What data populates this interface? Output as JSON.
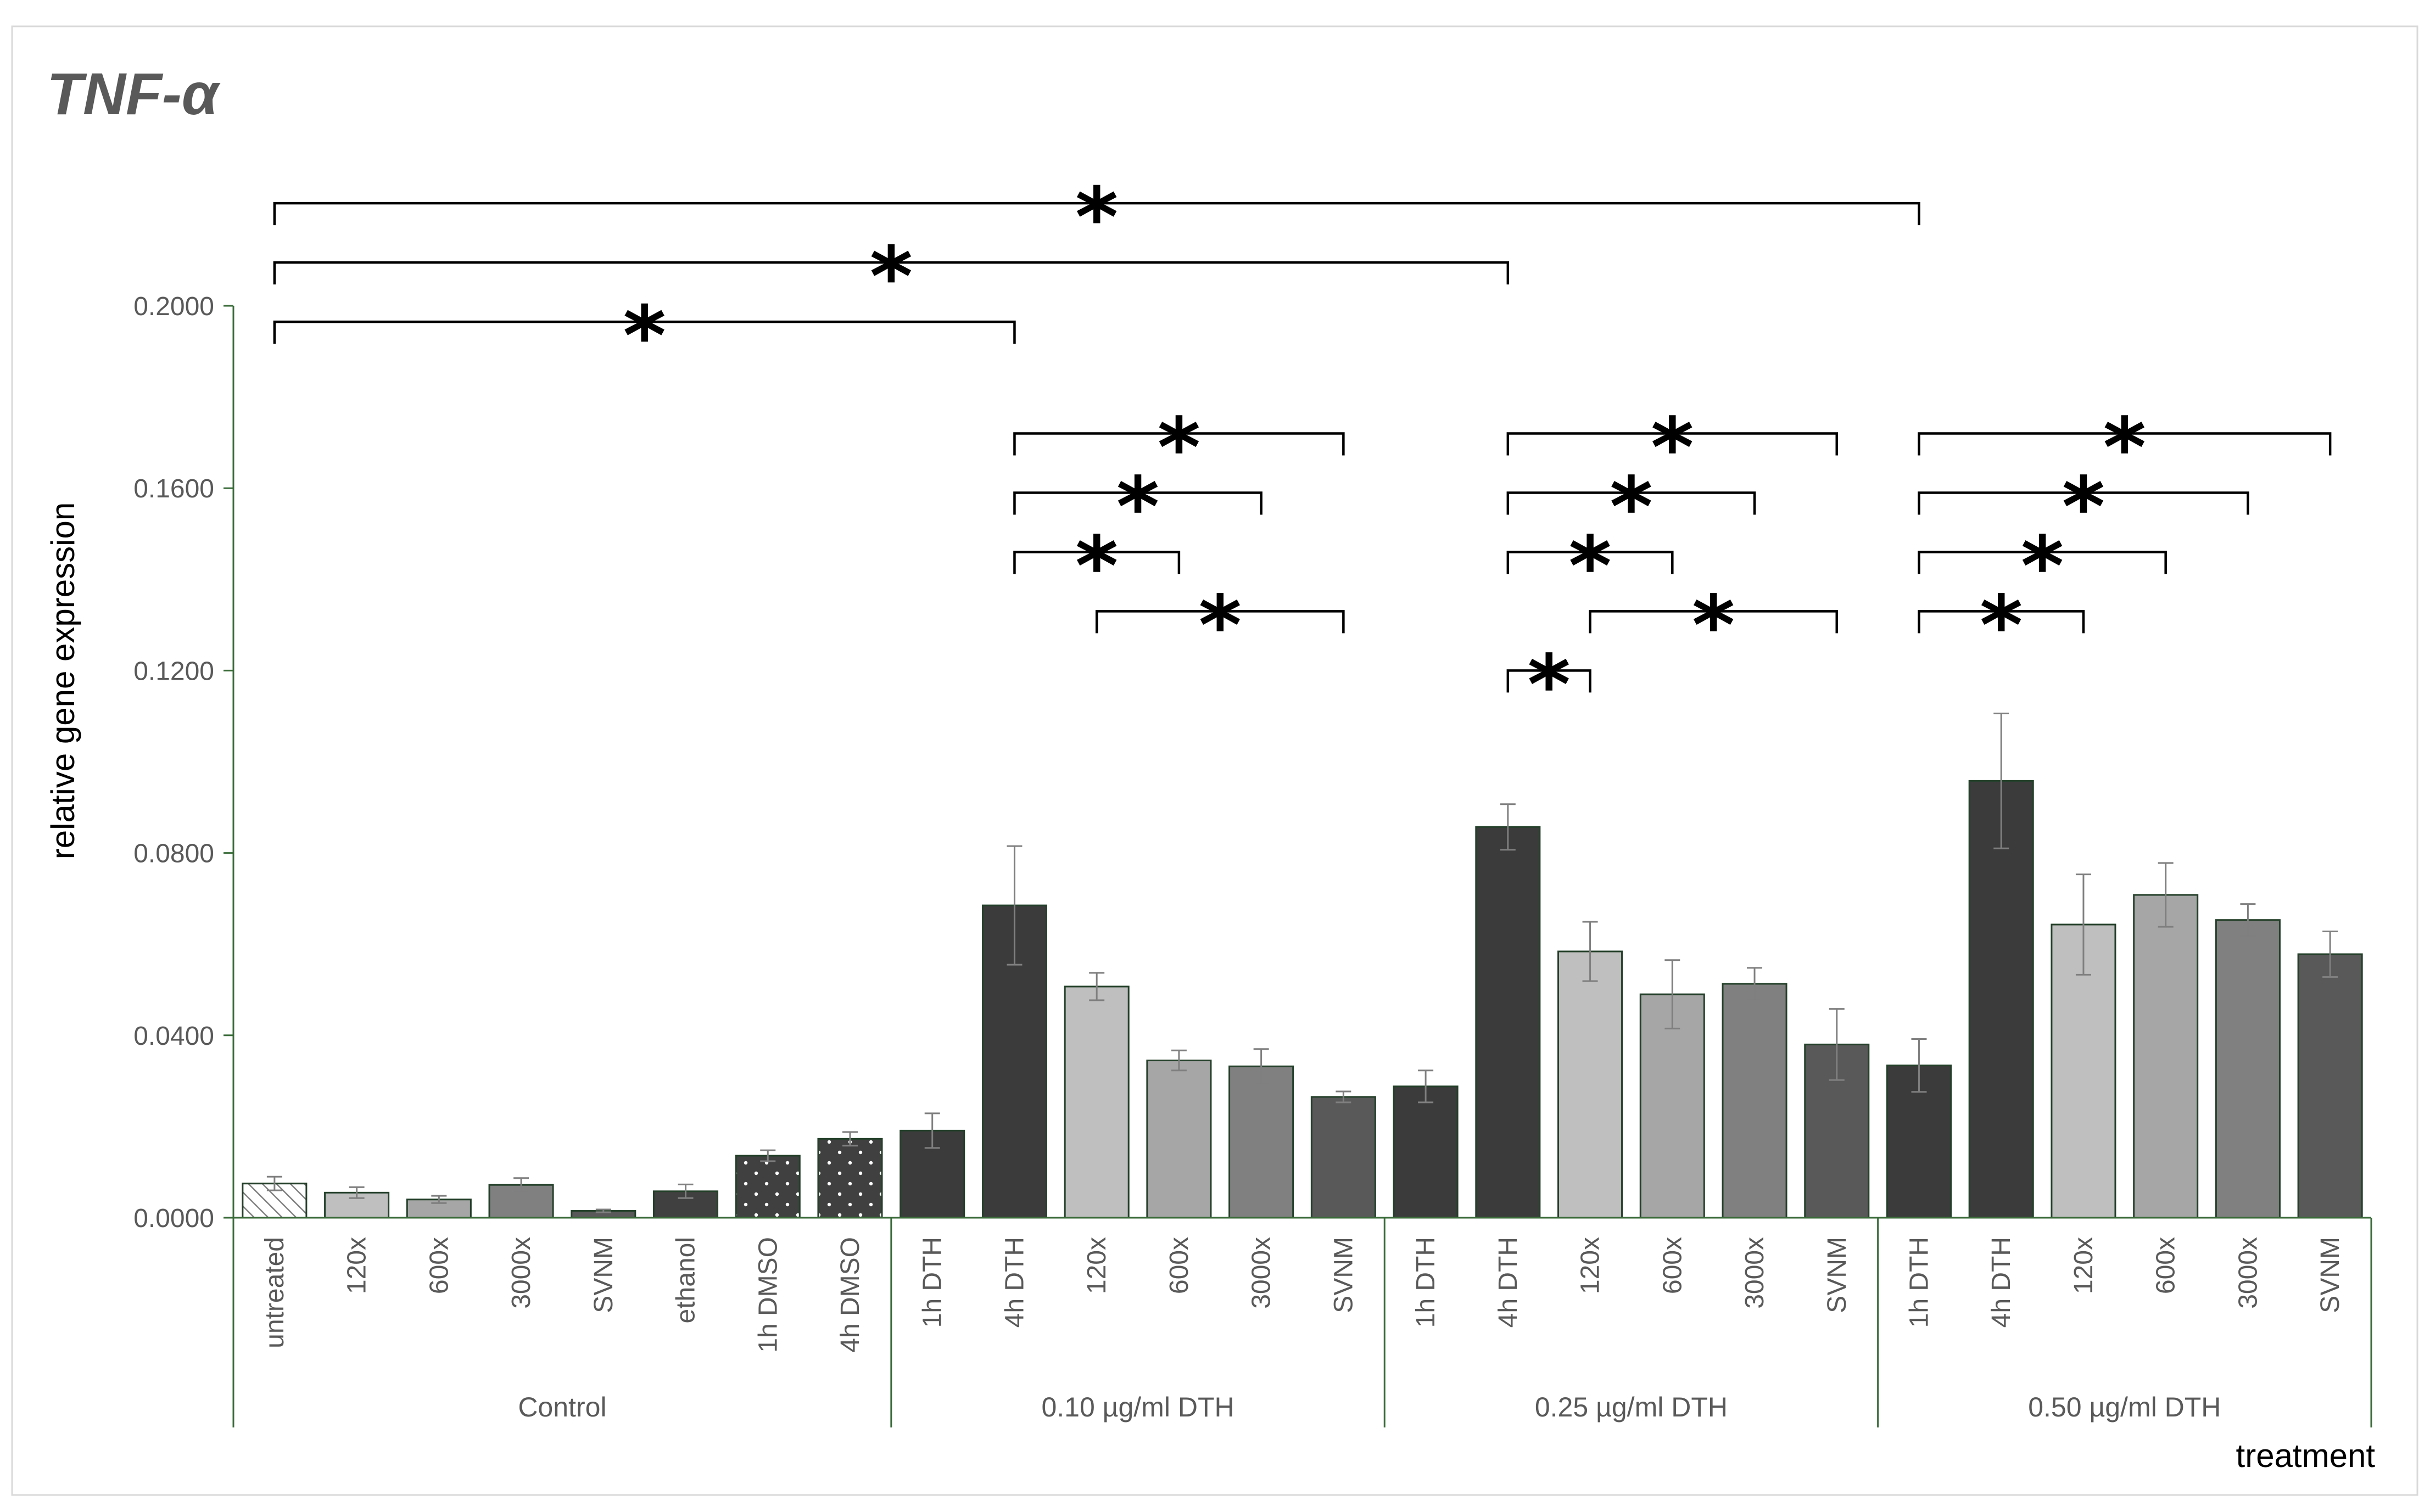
{
  "chart_data": {
    "type": "bar",
    "title": "TNF-α",
    "xlabel": "treatment",
    "ylabel": "relative gene expression",
    "ylim": [
      0,
      0.2
    ],
    "ytick_step": 0.04,
    "ytick_labels": [
      "0.0000",
      "0.0400",
      "0.0800",
      "0.1200",
      "0.1600",
      "0.2000"
    ],
    "grid": false,
    "categories": [
      "untreated",
      "120x",
      "600x",
      "3000x",
      "SVNM",
      "ethanol",
      "1h DMSO",
      "4h DMSO",
      "1h DTH",
      "4h DTH",
      "120x",
      "600x",
      "3000x",
      "SVNM",
      "1h DTH",
      "4h DTH",
      "120x",
      "600x",
      "3000x",
      "SVNM",
      "1h DTH",
      "4h DTH",
      "120x",
      "600x",
      "3000x",
      "SVNM"
    ],
    "groups": [
      {
        "label": "Control",
        "start": 0,
        "count": 8
      },
      {
        "label": "0.10 µg/ml DTH",
        "start": 8,
        "count": 6
      },
      {
        "label": "0.25 µg/ml DTH",
        "start": 14,
        "count": 6
      },
      {
        "label": "0.50 µg/ml DTH",
        "start": 20,
        "count": 6
      }
    ],
    "values": [
      0.0075,
      0.0055,
      0.004,
      0.0072,
      0.0015,
      0.0058,
      0.0136,
      0.0173,
      0.0191,
      0.0685,
      0.0507,
      0.0345,
      0.0332,
      0.0265,
      0.0288,
      0.0857,
      0.0584,
      0.049,
      0.0513,
      0.038,
      0.0334,
      0.0958,
      0.0643,
      0.0708,
      0.0653,
      0.0578
    ],
    "errors": [
      0.0015,
      0.0012,
      0.0008,
      0.0015,
      0.0003,
      0.0015,
      0.0012,
      0.0015,
      0.0038,
      0.013,
      0.003,
      0.0022,
      0.0038,
      0.0012,
      0.0035,
      0.005,
      0.0065,
      0.0075,
      0.0035,
      0.0078,
      0.0058,
      0.0148,
      0.011,
      0.007,
      0.0035,
      0.005
    ],
    "bar_colors": [
      "#ffffff",
      "#bfbfbf",
      "#a6a6a6",
      "#808080",
      "#595959",
      "#404040",
      "#404040",
      "#0d0d0d",
      "#3b3b3b",
      "#3b3b3b",
      "#bfbfbf",
      "#a6a6a6",
      "#808080",
      "#595959",
      "#3b3b3b",
      "#3b3b3b",
      "#bfbfbf",
      "#a6a6a6",
      "#808080",
      "#595959",
      "#3b3b3b",
      "#3b3b3b",
      "#bfbfbf",
      "#a6a6a6",
      "#808080",
      "#595959"
    ],
    "bar_patterns": [
      "hatch",
      "",
      "",
      "",
      "",
      "",
      "dots",
      "dots",
      "",
      "",
      "",
      "",
      "",
      "",
      "",
      "",
      "",
      "",
      "",
      "",
      "",
      "",
      "",
      "",
      "",
      ""
    ],
    "significance": [
      {
        "from": 0,
        "to": 20,
        "level": 0.2225,
        "label": "*"
      },
      {
        "from": 0,
        "to": 15,
        "level": 0.2095,
        "label": "*"
      },
      {
        "from": 0,
        "to": 9,
        "level": 0.1965,
        "label": "*"
      },
      {
        "from": 9,
        "to": 13,
        "level": 0.172,
        "label": "*"
      },
      {
        "from": 9,
        "to": 12,
        "level": 0.159,
        "label": "*"
      },
      {
        "from": 9,
        "to": 11,
        "level": 0.146,
        "label": "*"
      },
      {
        "from": 10,
        "to": 13,
        "level": 0.133,
        "label": "*"
      },
      {
        "from": 15,
        "to": 19,
        "level": 0.172,
        "label": "*"
      },
      {
        "from": 15,
        "to": 18,
        "level": 0.159,
        "label": "*"
      },
      {
        "from": 15,
        "to": 17,
        "level": 0.146,
        "label": "*"
      },
      {
        "from": 16,
        "to": 19,
        "level": 0.133,
        "label": "*"
      },
      {
        "from": 15,
        "to": 16,
        "level": 0.12,
        "label": "*"
      },
      {
        "from": 20,
        "to": 25,
        "level": 0.172,
        "label": "*"
      },
      {
        "from": 20,
        "to": 24,
        "level": 0.159,
        "label": "*"
      },
      {
        "from": 20,
        "to": 23,
        "level": 0.146,
        "label": "*"
      },
      {
        "from": 20,
        "to": 22,
        "level": 0.133,
        "label": "*"
      }
    ],
    "colors": {
      "axis": "#3a6b3a",
      "bar_outline": "#24402a",
      "error_bar": "#7f7f7f",
      "text": "#595959"
    }
  }
}
